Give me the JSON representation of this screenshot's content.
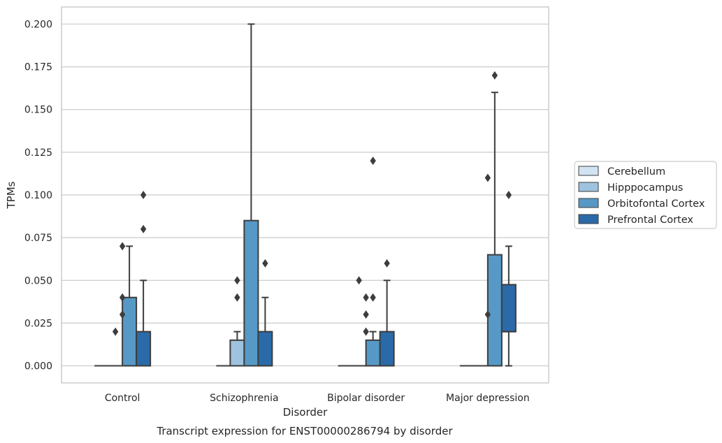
{
  "caption": "Transcript expression for ENST00000286794 by disorder",
  "chart_data": {
    "type": "boxplot",
    "xlabel": "Disorder",
    "ylabel": "TPMs",
    "ylim": [
      -0.01,
      0.21
    ],
    "yticks": [
      "0.000",
      "0.025",
      "0.050",
      "0.075",
      "0.100",
      "0.125",
      "0.150",
      "0.175",
      "0.200"
    ],
    "grid": "horizontal",
    "legend_position": "right",
    "categories": [
      "Control",
      "Schizophrenia",
      "Bipolar disorder",
      "Major depression"
    ],
    "series": [
      {
        "name": "Cerebellum",
        "color": "#d2e3f3",
        "boxes": [
          {
            "q1": 0,
            "median": 0,
            "q3": 0,
            "whislo": 0,
            "whishi": 0,
            "fliers": []
          },
          {
            "q1": 0,
            "median": 0,
            "q3": 0,
            "whislo": 0,
            "whishi": 0,
            "fliers": []
          },
          {
            "q1": 0,
            "median": 0,
            "q3": 0,
            "whislo": 0,
            "whishi": 0,
            "fliers": []
          },
          {
            "q1": 0,
            "median": 0,
            "q3": 0,
            "whislo": 0,
            "whishi": 0,
            "fliers": []
          }
        ]
      },
      {
        "name": "Hipppocampus",
        "color": "#9dc3de",
        "boxes": [
          {
            "q1": 0,
            "median": 0,
            "q3": 0,
            "whislo": 0,
            "whishi": 0,
            "fliers": [
              0.02
            ]
          },
          {
            "q1": 0,
            "median": 0,
            "q3": 0.015,
            "whislo": 0,
            "whishi": 0.02,
            "fliers": [
              0.04,
              0.05
            ]
          },
          {
            "q1": 0,
            "median": 0,
            "q3": 0,
            "whislo": 0,
            "whishi": 0,
            "fliers": [
              0.05
            ]
          },
          {
            "q1": 0,
            "median": 0,
            "q3": 0,
            "whislo": 0,
            "whishi": 0,
            "fliers": []
          }
        ]
      },
      {
        "name": "Orbitofontal Cortex",
        "color": "#5799c6",
        "boxes": [
          {
            "q1": 0,
            "median": 0,
            "q3": 0.04,
            "whislo": 0,
            "whishi": 0.07,
            "fliers": []
          },
          {
            "q1": 0,
            "median": 0,
            "q3": 0.085,
            "whislo": 0,
            "whishi": 0.2,
            "fliers": []
          },
          {
            "q1": 0,
            "median": 0,
            "q3": 0.015,
            "whislo": 0,
            "whishi": 0.02,
            "fliers": [
              0.04,
              0.12
            ]
          },
          {
            "q1": 0,
            "median": 0,
            "q3": 0.065,
            "whislo": 0,
            "whishi": 0.16,
            "fliers": [
              0.17
            ]
          }
        ]
      },
      {
        "name": "Prefrontal Cortex",
        "color": "#2b6aa8",
        "boxes": [
          {
            "q1": 0,
            "median": 0,
            "q3": 0.02,
            "whislo": 0,
            "whishi": 0.05,
            "fliers": [
              0.08,
              0.1
            ]
          },
          {
            "q1": 0,
            "median": 0,
            "q3": 0.02,
            "whislo": 0,
            "whishi": 0.04,
            "fliers": [
              0.06
            ]
          },
          {
            "q1": 0,
            "median": 0,
            "q3": 0.02,
            "whislo": 0,
            "whishi": 0.05,
            "fliers": [
              0.06
            ]
          },
          {
            "q1": 0.02,
            "median": 0.02,
            "q3": 0.0475,
            "whislo": 0,
            "whishi": 0.07,
            "fliers": [
              0.1
            ]
          }
        ]
      }
    ],
    "extra_fliers": [
      {
        "category": 0,
        "offset": -0.5,
        "values": [
          0.03,
          0.04,
          0.07
        ]
      },
      {
        "category": 2,
        "offset": -0.5,
        "values": [
          0.02,
          0.03,
          0.04
        ]
      },
      {
        "category": 3,
        "offset": -0.5,
        "values": [
          0.03,
          0.11
        ]
      }
    ]
  }
}
